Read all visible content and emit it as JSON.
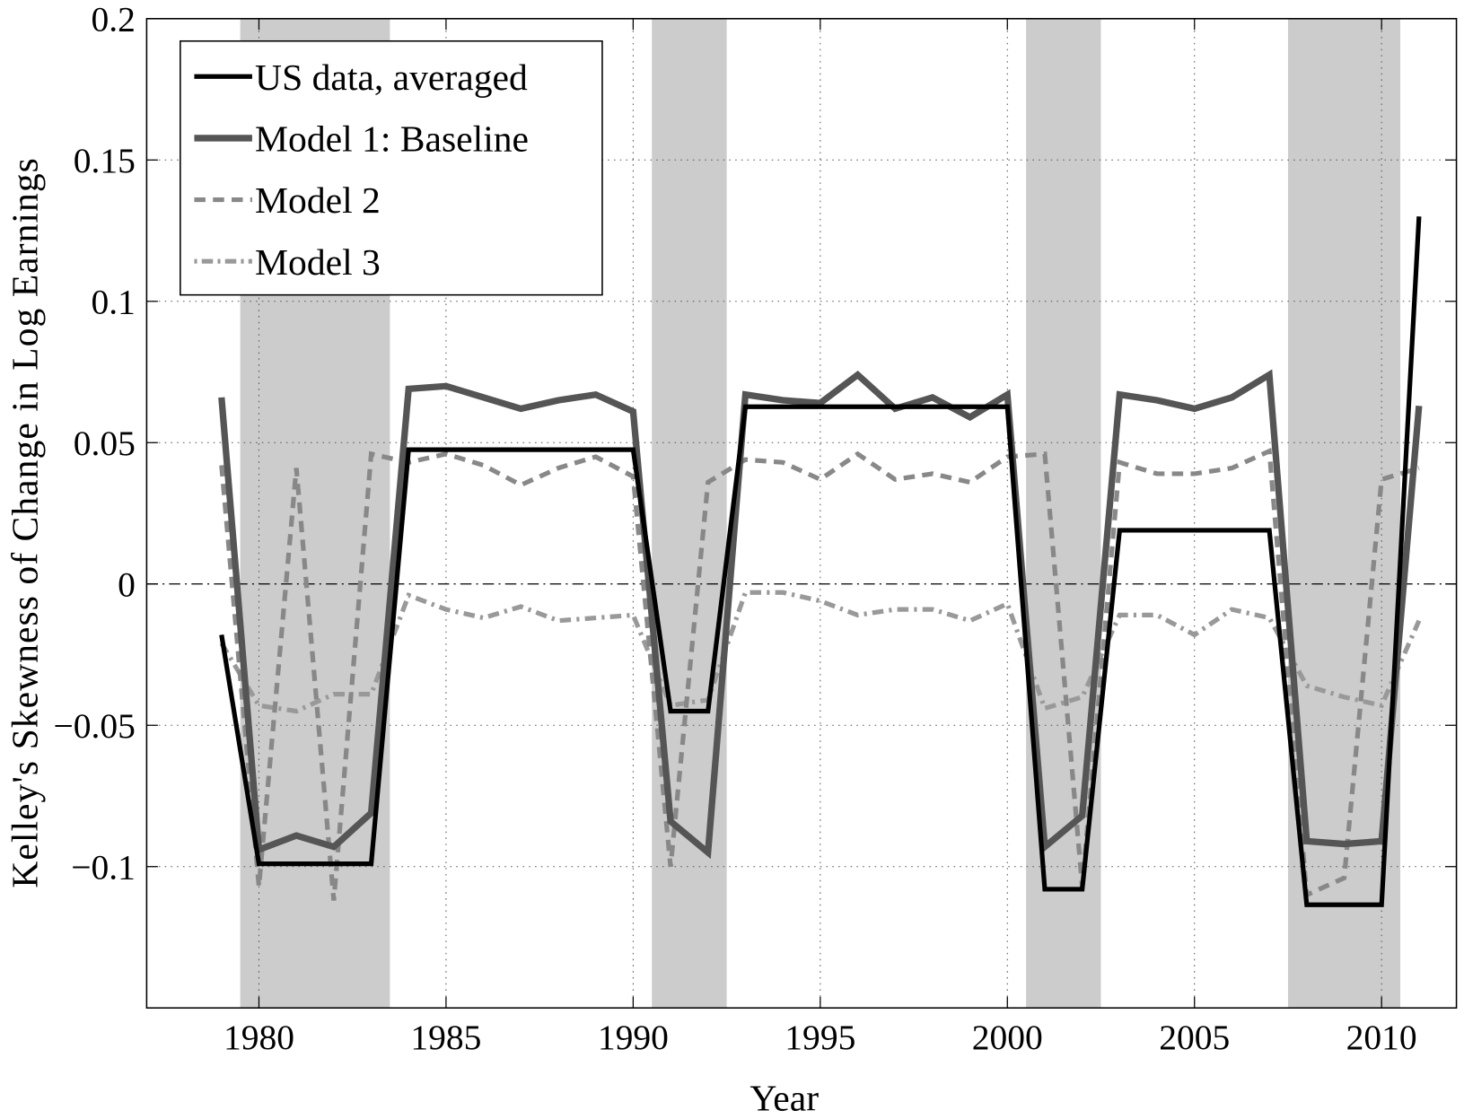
{
  "chart_data": {
    "type": "line",
    "title": "",
    "xlabel": "Year",
    "ylabel": "Kelley's Skewness of Change in Log Earnings",
    "xlim": [
      1977,
      2012
    ],
    "ylim": [
      -0.15,
      0.2
    ],
    "xticks": [
      1980,
      1985,
      1990,
      1995,
      2000,
      2005,
      2010
    ],
    "xtick_labels": [
      "1980",
      "1985",
      "1990",
      "1995",
      "2000",
      "2005",
      "2010"
    ],
    "yticks": [
      -0.1,
      -0.05,
      0,
      0.05,
      0.1,
      0.15,
      0.2
    ],
    "ytick_labels": [
      "−0.1",
      "−0.05",
      "0",
      "0.05",
      "0.1",
      "0.15",
      "0.2"
    ],
    "grid": true,
    "zero_line": true,
    "legend_position": "top-left",
    "shaded_regions": [
      [
        1979.5,
        1983.5
      ],
      [
        1990.5,
        1992.5
      ],
      [
        2000.5,
        2002.5
      ],
      [
        2007.5,
        2010.5
      ]
    ],
    "shade_color": "#cccccc",
    "x": [
      1979,
      1980,
      1981,
      1982,
      1983,
      1984,
      1985,
      1986,
      1987,
      1988,
      1989,
      1990,
      1991,
      1992,
      1993,
      1994,
      1995,
      1996,
      1997,
      1998,
      1999,
      2000,
      2001,
      2002,
      2003,
      2004,
      2005,
      2006,
      2007,
      2008,
      2009,
      2010,
      2011
    ],
    "series": [
      {
        "name": "US data, averaged",
        "color": "#000000",
        "style": "solid",
        "values": [
          -0.018,
          -0.099,
          -0.099,
          -0.099,
          -0.099,
          0.0475,
          0.0475,
          0.0475,
          0.0475,
          0.0475,
          0.0475,
          0.0475,
          -0.045,
          -0.045,
          0.0627,
          0.0627,
          0.0627,
          0.0627,
          0.0627,
          0.0627,
          0.0627,
          0.0627,
          -0.108,
          -0.108,
          0.019,
          0.019,
          0.019,
          0.019,
          0.019,
          -0.1135,
          -0.1135,
          -0.1135,
          0.13
        ]
      },
      {
        "name": "Model 1: Baseline",
        "color": "#555555",
        "style": "solid",
        "values": [
          0.066,
          -0.094,
          -0.089,
          -0.093,
          -0.081,
          0.069,
          0.07,
          0.066,
          0.062,
          0.065,
          0.067,
          0.061,
          -0.084,
          -0.095,
          0.067,
          0.065,
          0.064,
          0.074,
          0.062,
          0.066,
          0.059,
          0.067,
          -0.093,
          -0.082,
          0.067,
          0.065,
          0.062,
          0.066,
          0.074,
          -0.091,
          -0.092,
          -0.091,
          0.063
        ]
      },
      {
        "name": "Model 2",
        "color": "#888888",
        "style": "dashed",
        "values": [
          0.042,
          -0.107,
          0.041,
          -0.112,
          0.046,
          0.043,
          0.046,
          0.042,
          0.035,
          0.041,
          0.045,
          0.038,
          -0.1,
          0.036,
          0.044,
          0.043,
          0.037,
          0.046,
          0.037,
          0.039,
          0.036,
          0.045,
          0.046,
          -0.107,
          0.043,
          0.039,
          0.039,
          0.041,
          0.047,
          -0.11,
          -0.104,
          0.037,
          0.041
        ]
      },
      {
        "name": "Model 3",
        "color": "#999999",
        "style": "dashdot",
        "values": [
          -0.021,
          -0.043,
          -0.045,
          -0.039,
          -0.039,
          -0.004,
          -0.009,
          -0.012,
          -0.008,
          -0.013,
          -0.012,
          -0.011,
          -0.043,
          -0.041,
          -0.003,
          -0.003,
          -0.006,
          -0.011,
          -0.009,
          -0.009,
          -0.013,
          -0.007,
          -0.044,
          -0.04,
          -0.011,
          -0.011,
          -0.018,
          -0.009,
          -0.012,
          -0.036,
          -0.04,
          -0.043,
          -0.013
        ]
      }
    ]
  }
}
